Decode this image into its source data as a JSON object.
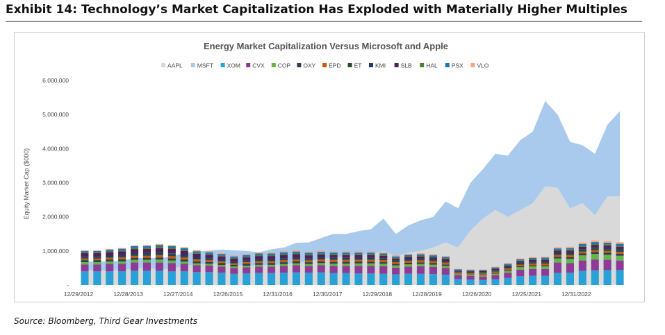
{
  "exhibit_title": "Exhibit 14: Technology’s Market Capitalization Has Exploded with Materially Higher Multiples",
  "source": "Source: Bloomberg, Third Gear Investments",
  "chart_data": {
    "type": "bar",
    "title": "Energy Market Capitalization  Versus Microsoft and Apple",
    "ylabel": "Equity Market Cap ($000)",
    "xlabel": "",
    "ylim": [
      0,
      6000000
    ],
    "yticks": [
      0,
      1000000,
      2000000,
      3000000,
      4000000,
      5000000,
      6000000
    ],
    "ytick_labels": [
      "-",
      "1,000,000",
      "2,000,000",
      "3,000,000",
      "4,000,000",
      "5,000,000",
      "6,000,000"
    ],
    "grid": false,
    "legend_position": "top",
    "x_tick_labels": [
      {
        "index": 0,
        "label": "12/29/2012"
      },
      {
        "index": 4,
        "label": "12/28/2013"
      },
      {
        "index": 8,
        "label": "12/27/2014"
      },
      {
        "index": 12,
        "label": "12/26/2015"
      },
      {
        "index": 16,
        "label": "12/31/2016"
      },
      {
        "index": 20,
        "label": "12/30/2017"
      },
      {
        "index": 24,
        "label": "12/29/2018"
      },
      {
        "index": 28,
        "label": "12/28/2019"
      },
      {
        "index": 32,
        "label": "12/26/2020"
      },
      {
        "index": 36,
        "label": "12/25/2021"
      },
      {
        "index": 40,
        "label": "12/31/2022"
      }
    ],
    "area_series": [
      {
        "name": "AAPL",
        "color": "#d9d9d9",
        "values": [
          450000,
          420000,
          430000,
          440000,
          480000,
          500000,
          460000,
          480000,
          560000,
          600000,
          620000,
          640000,
          600000,
          560000,
          580000,
          590000,
          600000,
          640000,
          700000,
          780000,
          800000,
          850000,
          880000,
          900000,
          1000000,
          850000,
          950000,
          1000000,
          1100000,
          1250000,
          1100000,
          1600000,
          1950000,
          2200000,
          2000000,
          2200000,
          2400000,
          2900000,
          2850000,
          2250000,
          2400000,
          2050000,
          2600000,
          2600000
        ]
      },
      {
        "name": "MSFT",
        "color": "#a9caec",
        "values": [
          250000,
          260000,
          270000,
          280000,
          300000,
          310000,
          330000,
          360000,
          380000,
          380000,
          390000,
          400000,
          420000,
          440000,
          380000,
          460000,
          500000,
          600000,
          550000,
          600000,
          700000,
          650000,
          700000,
          740000,
          950000,
          650000,
          800000,
          900000,
          900000,
          1200000,
          1150000,
          1400000,
          1450000,
          1650000,
          1800000,
          2050000,
          2100000,
          2500000,
          2150000,
          1950000,
          1700000,
          1800000,
          2100000,
          2500000
        ]
      }
    ],
    "bar_series": [
      {
        "name": "XOM",
        "color": "#2aa1d6",
        "values": [
          400000,
          400000,
          400000,
          400000,
          420000,
          420000,
          420000,
          400000,
          400000,
          380000,
          380000,
          360000,
          330000,
          340000,
          350000,
          350000,
          360000,
          370000,
          360000,
          370000,
          350000,
          350000,
          340000,
          340000,
          330000,
          310000,
          330000,
          330000,
          320000,
          300000,
          180000,
          160000,
          150000,
          170000,
          210000,
          260000,
          270000,
          270000,
          360000,
          360000,
          420000,
          430000,
          440000,
          440000
        ]
      },
      {
        "name": "CVX",
        "color": "#8e3a97",
        "values": [
          200000,
          200000,
          220000,
          220000,
          240000,
          240000,
          240000,
          240000,
          220000,
          200000,
          190000,
          180000,
          170000,
          180000,
          190000,
          190000,
          200000,
          210000,
          200000,
          210000,
          210000,
          210000,
          220000,
          220000,
          220000,
          200000,
          210000,
          220000,
          210000,
          200000,
          120000,
          110000,
          100000,
          120000,
          150000,
          190000,
          200000,
          200000,
          300000,
          280000,
          300000,
          320000,
          300000,
          280000
        ]
      },
      {
        "name": "COP",
        "color": "#62b548",
        "values": [
          70000,
          70000,
          70000,
          75000,
          80000,
          80000,
          85000,
          80000,
          70000,
          60000,
          55000,
          50000,
          45000,
          50000,
          55000,
          55000,
          58000,
          60000,
          60000,
          65000,
          70000,
          72000,
          75000,
          75000,
          75000,
          68000,
          70000,
          72000,
          70000,
          65000,
          30000,
          30000,
          35000,
          45000,
          55000,
          75000,
          80000,
          80000,
          120000,
          130000,
          150000,
          160000,
          150000,
          140000
        ]
      },
      {
        "name": "OXY",
        "color": "#2f3d4f",
        "values": [
          60000,
          60000,
          60000,
          62000,
          62000,
          62000,
          64000,
          62000,
          58000,
          54000,
          52000,
          50000,
          48000,
          50000,
          52000,
          52000,
          52000,
          52000,
          50000,
          50000,
          48000,
          48000,
          46000,
          46000,
          45000,
          40000,
          42000,
          42000,
          40000,
          38000,
          10000,
          12000,
          14000,
          18000,
          22000,
          26000,
          28000,
          28000,
          45000,
          50000,
          55000,
          60000,
          58000,
          55000
        ]
      },
      {
        "name": "EPD",
        "color": "#c55a11",
        "values": [
          45000,
          45000,
          48000,
          50000,
          55000,
          55000,
          60000,
          65000,
          65000,
          55000,
          55000,
          55000,
          45000,
          50000,
          55000,
          55000,
          58000,
          58000,
          55000,
          57000,
          58000,
          60000,
          60000,
          60000,
          62000,
          55000,
          58000,
          60000,
          60000,
          58000,
          35000,
          38000,
          40000,
          42000,
          45000,
          48000,
          50000,
          52000,
          52000,
          55000,
          55000,
          55000,
          56000,
          57000
        ]
      },
      {
        "name": "ET",
        "color": "#254d2a",
        "values": [
          20000,
          20000,
          25000,
          30000,
          40000,
          40000,
          45000,
          40000,
          30000,
          25000,
          20000,
          15000,
          12000,
          15000,
          20000,
          20000,
          22000,
          22000,
          20000,
          22000,
          22000,
          22000,
          22000,
          22000,
          20000,
          18000,
          20000,
          20000,
          20000,
          18000,
          12000,
          14000,
          15000,
          18000,
          22000,
          25000,
          28000,
          28000,
          32000,
          34000,
          36000,
          38000,
          38000,
          38000
        ]
      },
      {
        "name": "KMI",
        "color": "#1f3a69",
        "values": [
          40000,
          40000,
          42000,
          44000,
          44000,
          44000,
          45000,
          45000,
          44000,
          40000,
          38000,
          36000,
          32000,
          34000,
          36000,
          36000,
          36000,
          37000,
          37000,
          38000,
          38000,
          38000,
          38000,
          38000,
          36000,
          33000,
          35000,
          36000,
          36000,
          34000,
          25000,
          26000,
          27000,
          30000,
          32000,
          36000,
          37000,
          37000,
          38000,
          38000,
          38000,
          39000,
          40000,
          40000
        ]
      },
      {
        "name": "SLB",
        "color": "#521f59",
        "values": [
          100000,
          100000,
          105000,
          110000,
          115000,
          120000,
          125000,
          125000,
          115000,
          105000,
          100000,
          95000,
          90000,
          92000,
          95000,
          95000,
          96000,
          97000,
          90000,
          88000,
          80000,
          78000,
          75000,
          75000,
          70000,
          55000,
          58000,
          60000,
          55000,
          52000,
          20000,
          22000,
          25000,
          32000,
          40000,
          45000,
          48000,
          50000,
          60000,
          65000,
          70000,
          75000,
          75000,
          75000
        ]
      },
      {
        "name": "HAL",
        "color": "#4f7f31",
        "values": [
          30000,
          30000,
          32000,
          34000,
          38000,
          40000,
          45000,
          42000,
          36000,
          32000,
          30000,
          28000,
          26000,
          28000,
          30000,
          30000,
          32000,
          33000,
          30000,
          30000,
          30000,
          30000,
          30000,
          30000,
          28000,
          22000,
          23000,
          24000,
          22000,
          20000,
          8000,
          9000,
          10000,
          14000,
          17000,
          20000,
          22000,
          23000,
          28000,
          30000,
          33000,
          35000,
          35000,
          35000
        ]
      },
      {
        "name": "PSX",
        "color": "#1b74b8",
        "values": [
          35000,
          35000,
          38000,
          40000,
          45000,
          45000,
          48000,
          45000,
          42000,
          42000,
          42000,
          42000,
          42000,
          42000,
          43000,
          43000,
          44000,
          44000,
          44000,
          45000,
          45000,
          45000,
          45000,
          45000,
          42000,
          40000,
          40000,
          40000,
          40000,
          38000,
          22000,
          24000,
          26000,
          28000,
          30000,
          33000,
          34000,
          35000,
          40000,
          42000,
          45000,
          48000,
          48000,
          48000
        ]
      },
      {
        "name": "VLO",
        "color": "#f4a582",
        "values": [
          18000,
          18000,
          20000,
          22000,
          25000,
          25000,
          28000,
          28000,
          30000,
          30000,
          30000,
          30000,
          30000,
          32000,
          34000,
          34000,
          35000,
          35000,
          35000,
          36000,
          38000,
          38000,
          38000,
          38000,
          35000,
          30000,
          32000,
          34000,
          34000,
          32000,
          12000,
          13000,
          14000,
          17000,
          20000,
          24000,
          26000,
          28000,
          36000,
          40000,
          45000,
          50000,
          48000,
          47000
        ]
      }
    ]
  }
}
